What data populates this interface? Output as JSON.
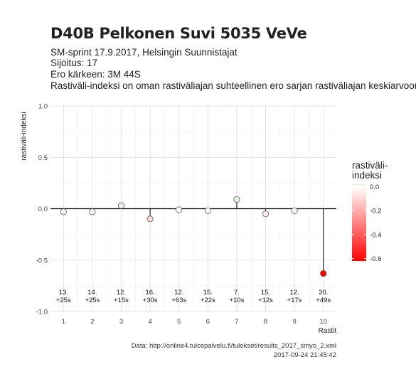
{
  "title": "D40B Pelkonen Suvi 5035 VeVe",
  "subtitle_lines": [
    "SM-sprint 17.9.2017, Helsingin Suunnistajat",
    "Sijoitus: 17",
    "Ero kärkeen: 3M 44S",
    "Rastiväli-indeksi on oman rastiväliajan suhteellinen ero sarjan rastiväliajan keskiarvoon"
  ],
  "caption_lines": [
    "Data: http://online4.tulospalvelu.fi/tulokset/results_2017_smyo_2.xml",
    "2017-09-24 21:45:42"
  ],
  "chart_data": {
    "type": "scatter",
    "xlabel": "Rastit",
    "ylabel": "rastiväli-indeksi",
    "x": [
      1,
      2,
      3,
      4,
      5,
      6,
      7,
      8,
      9,
      10
    ],
    "y": [
      -0.03,
      -0.03,
      0.03,
      -0.1,
      -0.01,
      -0.02,
      0.09,
      -0.05,
      -0.02,
      -0.63
    ],
    "point_labels": [
      [
        "13.",
        "+25s"
      ],
      [
        "14.",
        "+25s"
      ],
      [
        "12.",
        "+15s"
      ],
      [
        "16.",
        "+30s"
      ],
      [
        "12.",
        "+63s"
      ],
      [
        "15.",
        "+22s"
      ],
      [
        "7.",
        "+10s"
      ],
      [
        "15.",
        "+12s"
      ],
      [
        "12.",
        "+17s"
      ],
      [
        "20.",
        "+49s"
      ]
    ],
    "xlim": [
      0.55,
      10.45
    ],
    "ylim": [
      -1.0,
      1.0
    ],
    "xticks": [
      "1",
      "2",
      "3",
      "4",
      "5",
      "6",
      "7",
      "8",
      "9",
      "10"
    ],
    "yticks": [
      "-1.0",
      "-0.5",
      "0.0",
      "0.5",
      "1.0"
    ],
    "grid": true,
    "legend": {
      "title_lines": [
        "rastiväli-",
        "indeksi"
      ],
      "ticks": [
        "0.0",
        "-0.2",
        "-0.4",
        "-0.6"
      ],
      "range": [
        -0.62,
        0.02
      ],
      "color_low": "#ff0000",
      "color_mid": "#ffffff",
      "color_high": "#e6f5e6",
      "placement": "right"
    }
  }
}
